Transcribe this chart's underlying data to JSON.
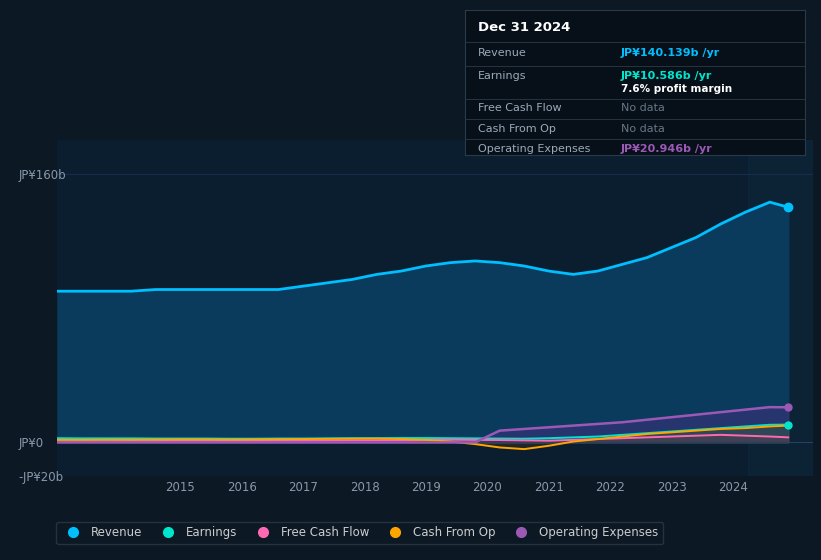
{
  "bg_color": "#0c1824",
  "plot_bg": "#0a1e30",
  "grid_color": "#1a3050",
  "ylim": [
    -20,
    180
  ],
  "yticks": [
    -20,
    0,
    160
  ],
  "ytick_labels": [
    "-JP¥20b",
    "JP¥0",
    "JP¥160b"
  ],
  "xticks": [
    2015,
    2016,
    2017,
    2018,
    2019,
    2020,
    2021,
    2022,
    2023,
    2024
  ],
  "xlim": [
    2013.0,
    2025.3
  ],
  "years": [
    2013.0,
    2013.4,
    2013.8,
    2014.2,
    2014.6,
    2015.0,
    2015.4,
    2015.8,
    2016.2,
    2016.6,
    2017.0,
    2017.4,
    2017.8,
    2018.2,
    2018.6,
    2019.0,
    2019.4,
    2019.8,
    2020.2,
    2020.6,
    2021.0,
    2021.4,
    2021.8,
    2022.2,
    2022.6,
    2023.0,
    2023.4,
    2023.8,
    2024.2,
    2024.6,
    2024.9
  ],
  "revenue": [
    90,
    90,
    90,
    90,
    91,
    91,
    91,
    91,
    91,
    91,
    93,
    95,
    97,
    100,
    102,
    105,
    107,
    108,
    107,
    105,
    102,
    100,
    102,
    106,
    110,
    116,
    122,
    130,
    137,
    143,
    140
  ],
  "earnings": [
    2.5,
    2.4,
    2.4,
    2.4,
    2.3,
    2.3,
    2.3,
    2.2,
    2.2,
    2.3,
    2.3,
    2.4,
    2.5,
    2.5,
    2.6,
    2.6,
    2.5,
    2.4,
    2.3,
    2.2,
    2.5,
    3.0,
    3.5,
    4.5,
    5.5,
    6.5,
    7.5,
    8.5,
    9.5,
    10.5,
    10.6
  ],
  "free_cash_flow": [
    0.5,
    0.6,
    0.7,
    0.8,
    0.8,
    1.0,
    1.0,
    0.9,
    0.9,
    1.0,
    1.0,
    1.1,
    1.2,
    1.3,
    1.3,
    1.5,
    1.6,
    1.5,
    1.4,
    1.2,
    1.0,
    1.5,
    2.0,
    2.5,
    3.0,
    3.5,
    4.0,
    4.5,
    4.0,
    3.5,
    3.0
  ],
  "cash_from_op": [
    1.5,
    1.5,
    1.6,
    1.6,
    1.7,
    1.8,
    1.8,
    1.7,
    1.8,
    1.9,
    2.0,
    2.1,
    2.2,
    2.3,
    2.0,
    1.5,
    0.5,
    -1.0,
    -3.0,
    -4.0,
    -2.0,
    0.5,
    2.0,
    3.5,
    5.0,
    6.0,
    7.0,
    8.0,
    8.5,
    9.5,
    10.0
  ],
  "operating_expenses": [
    0.0,
    0.0,
    0.0,
    0.0,
    0.0,
    0.0,
    0.0,
    0.0,
    0.0,
    0.0,
    0.0,
    0.0,
    0.0,
    0.0,
    0.0,
    0.0,
    0.0,
    0.0,
    7.0,
    8.0,
    9.0,
    10.0,
    11.0,
    12.0,
    13.5,
    15.0,
    16.5,
    18.0,
    19.5,
    21.0,
    20.9
  ],
  "revenue_color": "#00bfff",
  "earnings_color": "#00e5cc",
  "fcf_color": "#ff69b4",
  "cashop_color": "#ffa500",
  "opex_color": "#9b59b6",
  "revenue_fill_color": "#0a3a5c",
  "info_box": {
    "date": "Dec 31 2024",
    "revenue_label": "Revenue",
    "revenue_value": "JP¥140.139b /yr",
    "revenue_color": "#00bfff",
    "earnings_label": "Earnings",
    "earnings_value": "JP¥10.586b /yr",
    "earnings_color": "#00e5cc",
    "margin_text": "7.6% profit margin",
    "fcf_label": "Free Cash Flow",
    "fcf_value": "No data",
    "cashop_label": "Cash From Op",
    "cashop_value": "No data",
    "opex_label": "Operating Expenses",
    "opex_value": "JP¥20.946b /yr",
    "opex_color": "#9b59b6",
    "nodata_color": "#667788"
  },
  "legend_items": [
    {
      "label": "Revenue",
      "color": "#00bfff"
    },
    {
      "label": "Earnings",
      "color": "#00e5cc"
    },
    {
      "label": "Free Cash Flow",
      "color": "#ff69b4"
    },
    {
      "label": "Cash From Op",
      "color": "#ffa500"
    },
    {
      "label": "Operating Expenses",
      "color": "#9b59b6"
    }
  ],
  "last_period_start": 2024.25,
  "last_period_end": 2025.3
}
